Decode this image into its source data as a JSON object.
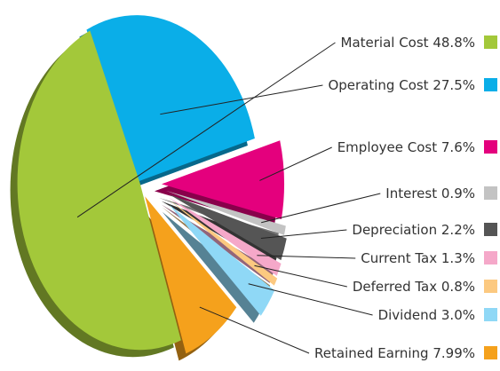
{
  "chart_data": {
    "type": "pie",
    "categories": [
      "Operating Cost",
      "Employee Cost",
      "Interest",
      "Depreciation",
      "Current Tax",
      "Deferred Tax",
      "Dividend",
      "Retained Earning",
      "Material Cost"
    ],
    "values": [
      27.5,
      7.6,
      0.9,
      2.2,
      1.3,
      0.8,
      3.0,
      7.99,
      48.8
    ],
    "value_labels": [
      "27.5%",
      "7.6%",
      "0.9%",
      "2.2%",
      "1.3%",
      "0.8%",
      "3.0%",
      "7.99%",
      "48.8%"
    ],
    "colors": [
      "#0aaee8",
      "#e4007d",
      "#c3c3c3",
      "#555555",
      "#f5a8c9",
      "#fcc980",
      "#8fd8f6",
      "#f5a11c",
      "#a3c83a"
    ]
  }
}
